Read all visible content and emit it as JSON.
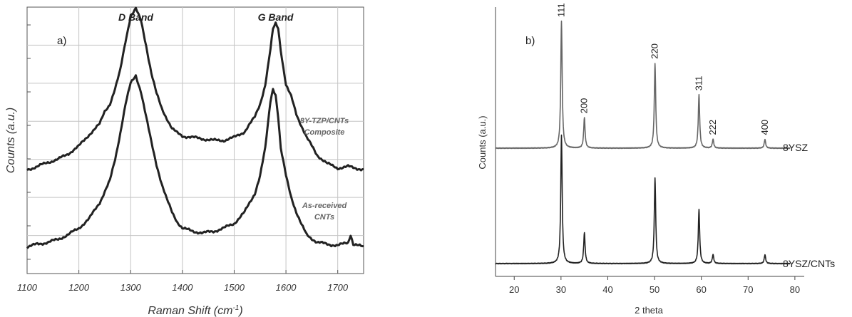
{
  "chart_data": [
    {
      "panel": "a)",
      "type": "line",
      "xlabel_main": "Raman Shift (cm",
      "xlabel_sup": "-1",
      "xlabel_end": ")",
      "ylabel": "Counts (a.u.)",
      "xlim": [
        1100,
        1750
      ],
      "xticks": [
        1100,
        1200,
        1300,
        1400,
        1500,
        1600,
        1700
      ],
      "grid": true,
      "annotations": [
        {
          "text": "D Band",
          "x": 1310
        },
        {
          "text": "G Band",
          "x": 1580
        }
      ],
      "series": [
        {
          "name_lines": [
            "8Y-TZP/CNTs",
            "Composite"
          ],
          "x": [
            1100,
            1120,
            1140,
            1160,
            1180,
            1200,
            1220,
            1240,
            1250,
            1260,
            1270,
            1280,
            1290,
            1300,
            1310,
            1320,
            1330,
            1340,
            1350,
            1360,
            1370,
            1380,
            1390,
            1400,
            1420,
            1440,
            1460,
            1480,
            1500,
            1520,
            1530,
            1540,
            1550,
            1560,
            1570,
            1575,
            1580,
            1585,
            1590,
            1600,
            1610,
            1620,
            1630,
            1640,
            1660,
            1680,
            1700,
            1720,
            1750
          ],
          "values": [
            0.0,
            0.02,
            0.05,
            0.07,
            0.11,
            0.16,
            0.24,
            0.31,
            0.4,
            0.45,
            0.55,
            0.68,
            0.88,
            1.05,
            1.1,
            1.02,
            0.85,
            0.66,
            0.52,
            0.42,
            0.35,
            0.28,
            0.25,
            0.23,
            0.22,
            0.21,
            0.2,
            0.2,
            0.22,
            0.26,
            0.31,
            0.36,
            0.45,
            0.58,
            0.82,
            0.96,
            1.0,
            0.97,
            0.82,
            0.58,
            0.5,
            0.38,
            0.3,
            0.22,
            0.1,
            0.04,
            0.01,
            0.02,
            0.0
          ]
        },
        {
          "name_lines": [
            "As-received",
            "CNTs"
          ],
          "x": [
            1100,
            1120,
            1140,
            1160,
            1180,
            1200,
            1220,
            1240,
            1260,
            1270,
            1280,
            1290,
            1300,
            1310,
            1320,
            1330,
            1340,
            1350,
            1360,
            1370,
            1380,
            1390,
            1400,
            1420,
            1440,
            1460,
            1480,
            1500,
            1520,
            1540,
            1550,
            1560,
            1570,
            1575,
            1580,
            1585,
            1590,
            1600,
            1610,
            1620,
            1630,
            1640,
            1660,
            1680,
            1700,
            1720,
            1725,
            1730,
            1750
          ],
          "values": [
            0.0,
            0.02,
            0.03,
            0.05,
            0.08,
            0.12,
            0.18,
            0.28,
            0.42,
            0.55,
            0.72,
            0.9,
            1.03,
            1.08,
            0.98,
            0.82,
            0.66,
            0.52,
            0.4,
            0.3,
            0.22,
            0.16,
            0.12,
            0.1,
            0.09,
            0.1,
            0.12,
            0.15,
            0.22,
            0.34,
            0.45,
            0.62,
            0.92,
            1.0,
            0.96,
            0.82,
            0.62,
            0.45,
            0.32,
            0.22,
            0.14,
            0.08,
            0.03,
            0.02,
            0.01,
            0.03,
            0.08,
            0.02,
            0.0
          ]
        }
      ]
    },
    {
      "panel": "b)",
      "type": "line",
      "xlabel": "2 theta",
      "ylabel": "Counts (a.u.)",
      "xlim": [
        16,
        82
      ],
      "xticks": [
        20,
        30,
        40,
        50,
        60,
        70,
        80
      ],
      "grid": false,
      "series": [
        {
          "name": "8YSZ",
          "peaks": [
            {
              "x": 30.1,
              "h": 1.0,
              "label": "111"
            },
            {
              "x": 35.0,
              "h": 0.24,
              "label": "200"
            },
            {
              "x": 50.1,
              "h": 0.67,
              "label": "220"
            },
            {
              "x": 59.5,
              "h": 0.42,
              "label": "311"
            },
            {
              "x": 62.5,
              "h": 0.07,
              "label": "222"
            },
            {
              "x": 73.6,
              "h": 0.07,
              "label": "400"
            }
          ]
        },
        {
          "name": "8YSZ/CNTs",
          "peaks": [
            {
              "x": 30.1,
              "h": 1.0
            },
            {
              "x": 35.0,
              "h": 0.24
            },
            {
              "x": 50.1,
              "h": 0.67
            },
            {
              "x": 59.5,
              "h": 0.42
            },
            {
              "x": 62.5,
              "h": 0.07
            },
            {
              "x": 73.6,
              "h": 0.07
            }
          ]
        }
      ]
    }
  ]
}
